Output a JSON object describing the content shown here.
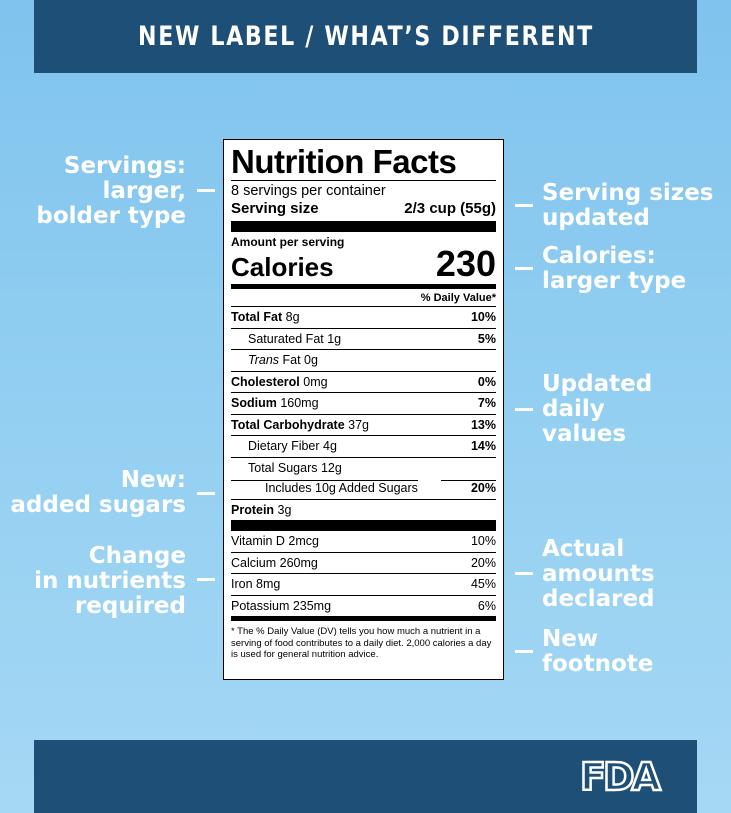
{
  "header": {
    "title": "NEW LABEL / WHAT’S DIFFERENT"
  },
  "callouts": {
    "servings": [
      "Servings:",
      "larger,",
      "bolder type"
    ],
    "serving_sizes": [
      "Serving sizes",
      "updated"
    ],
    "calories": [
      "Calories:",
      "larger type"
    ],
    "daily_values": [
      "Updated",
      "daily",
      "values"
    ],
    "added_sugars": [
      "New:",
      "added sugars"
    ],
    "nutrients_change": [
      "Change",
      "in nutrients",
      "required"
    ],
    "actual_amounts": [
      "Actual",
      "amounts",
      "declared"
    ],
    "footnote": [
      "New",
      "footnote"
    ]
  },
  "label": {
    "title": "Nutrition Facts",
    "servings": "8 servings per container",
    "serving_size_label": "Serving size",
    "serving_size_value": "2/3 cup (55g)",
    "amount_per_serving": "Amount per serving",
    "calories_label": "Calories",
    "calories_value": "230",
    "dv_header": "% Daily Value*",
    "nutrients": [
      {
        "bold_name": "Total Fat",
        "amount": "8g",
        "pct": "10%"
      },
      {
        "name": "Saturated Fat 1g",
        "pct": "5%"
      },
      {
        "italic": "Trans",
        "name": "Fat 0g",
        "pct": ""
      },
      {
        "bold_name": "Cholesterol",
        "amount": "0mg",
        "pct": "0%"
      },
      {
        "bold_name": "Sodium",
        "amount": "160mg",
        "pct": "7%"
      },
      {
        "bold_name": "Total Carbohydrate",
        "amount": "37g",
        "pct": "13%"
      },
      {
        "name": "Dietary Fiber 4g",
        "pct": "14%"
      },
      {
        "name": "Total Sugars 12g",
        "pct": ""
      },
      {
        "name": "Includes 10g Added Sugars",
        "pct": "20%"
      },
      {
        "bold_name": "Protein",
        "amount": "3g",
        "pct": ""
      }
    ],
    "vitamins": [
      {
        "name": "Vitamin D 2mcg",
        "pct": "10%"
      },
      {
        "name": "Calcium 260mg",
        "pct": "20%"
      },
      {
        "name": "Iron 8mg",
        "pct": "45%"
      },
      {
        "name": "Potassium 235mg",
        "pct": "6%"
      }
    ],
    "footnote": "* The % Daily Value (DV) tells you how much a nutrient in a serving of food contributes to a daily diet. 2,000 calories a day is used for general nutrition advice."
  },
  "footer": {
    "logo_text": "FDA"
  },
  "colors": {
    "banner": "#1e4f77",
    "background": "#93cff1",
    "text": "#ffffff"
  }
}
